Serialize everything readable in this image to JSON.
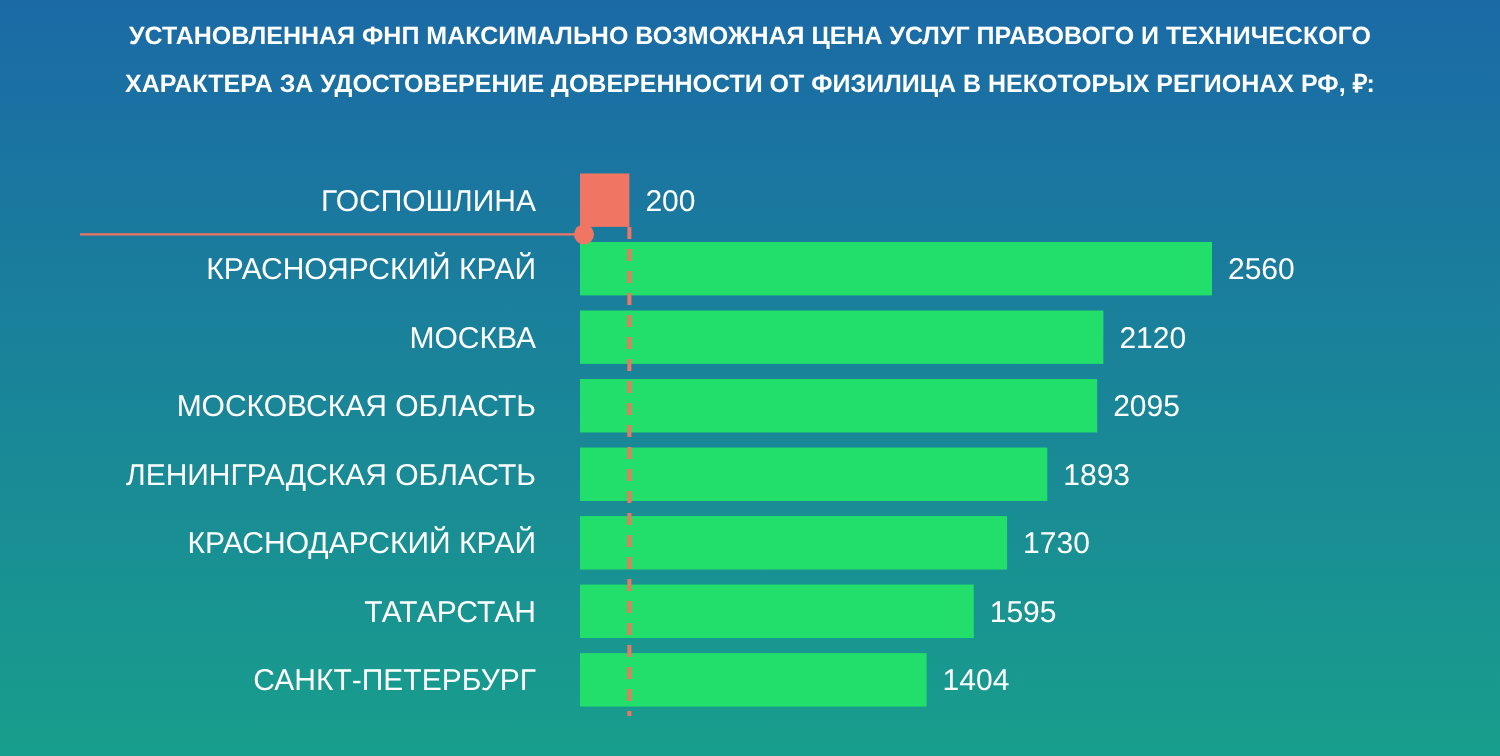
{
  "chart_data": {
    "type": "bar",
    "orientation": "horizontal",
    "title": "УСТАНОВЛЕННАЯ ФНП МАКСИМАЛЬНО ВОЗМОЖНАЯ ЦЕНА УСЛУГ ПРАВОВОГО И ТЕХНИЧЕСКОГО ХАРАКТЕРА ЗА УДОСТОВЕРЕНИЕ ДОВЕРЕННОСТИ ОТ ФИЗИЛИЦА В НЕКОТОРЫХ РЕГИОНАХ РФ, ₽:",
    "categories": [
      "ГОСПОШЛИНА",
      "КРАСНОЯРСКИЙ КРАЙ",
      "МОСКВА",
      "МОСКОВСКАЯ ОБЛАСТЬ",
      "ЛЕНИНГРАДСКАЯ ОБЛАСТЬ",
      "КРАСНОДАРСКИЙ КРАЙ",
      "ТАТАРСТАН",
      "САНКТ-ПЕТЕРБУРГ"
    ],
    "values": [
      200,
      2560,
      2120,
      2095,
      1893,
      1730,
      1595,
      1404
    ],
    "colors": [
      "#f07562",
      "#22de6a",
      "#22de6a",
      "#22de6a",
      "#22de6a",
      "#22de6a",
      "#22de6a",
      "#22de6a"
    ],
    "data_labels": true,
    "ref_lines": [
      {
        "axis": "x",
        "value": 200,
        "color": "#f07562",
        "line_style": "dashed"
      }
    ],
    "legend": false
  }
}
